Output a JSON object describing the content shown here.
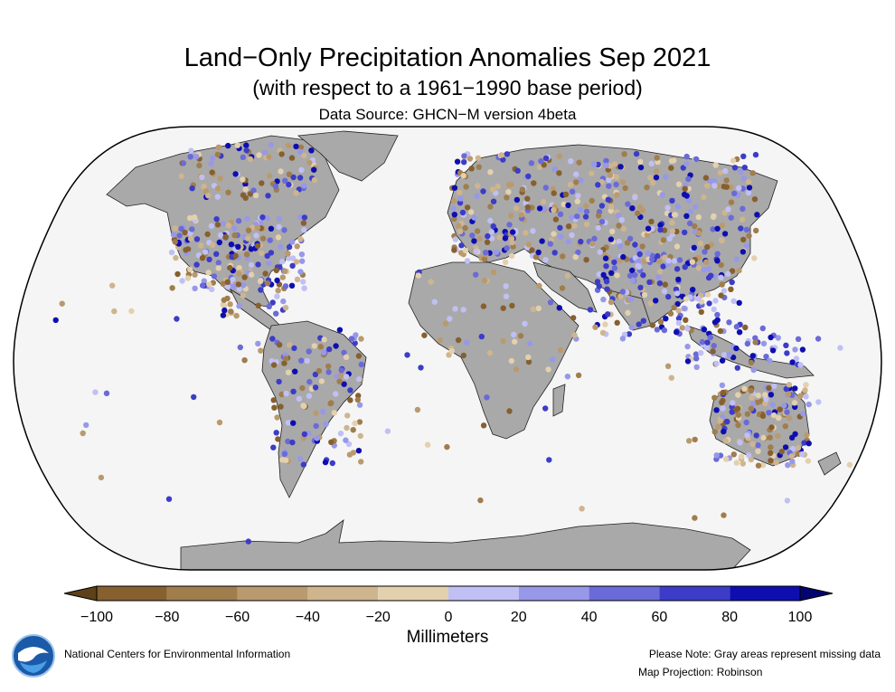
{
  "header": {
    "title": "Land−Only Precipitation Anomalies Sep 2021",
    "subtitle": "(with respect to a 1961−1990 base period)",
    "source": "Data Source: GHCN−M version 4beta"
  },
  "colorbar": {
    "labels": [
      "−100",
      "−80",
      "−60",
      "−40",
      "−20",
      "0",
      "20",
      "40",
      "60",
      "80",
      "100"
    ],
    "units": "Millimeters",
    "colors": [
      "#86602f",
      "#a07d4c",
      "#b99a6e",
      "#ceb58e",
      "#e3d0ad",
      "#c0c0f5",
      "#9898e8",
      "#6a6ad8",
      "#3c3cc8",
      "#0e0eb0"
    ],
    "under_color": "#5e4019",
    "over_color": "#04046e"
  },
  "map": {
    "projection": "Robinson",
    "ocean_color": "#f5f5f5",
    "land_color": "#a9a9a9",
    "outline_color": "#000000"
  },
  "footer": {
    "organization": "National Centers for Environmental Information",
    "note": "Please Note: Gray areas represent missing data",
    "projection": "Map Projection: Robinson",
    "logo": "noaa-logo"
  }
}
